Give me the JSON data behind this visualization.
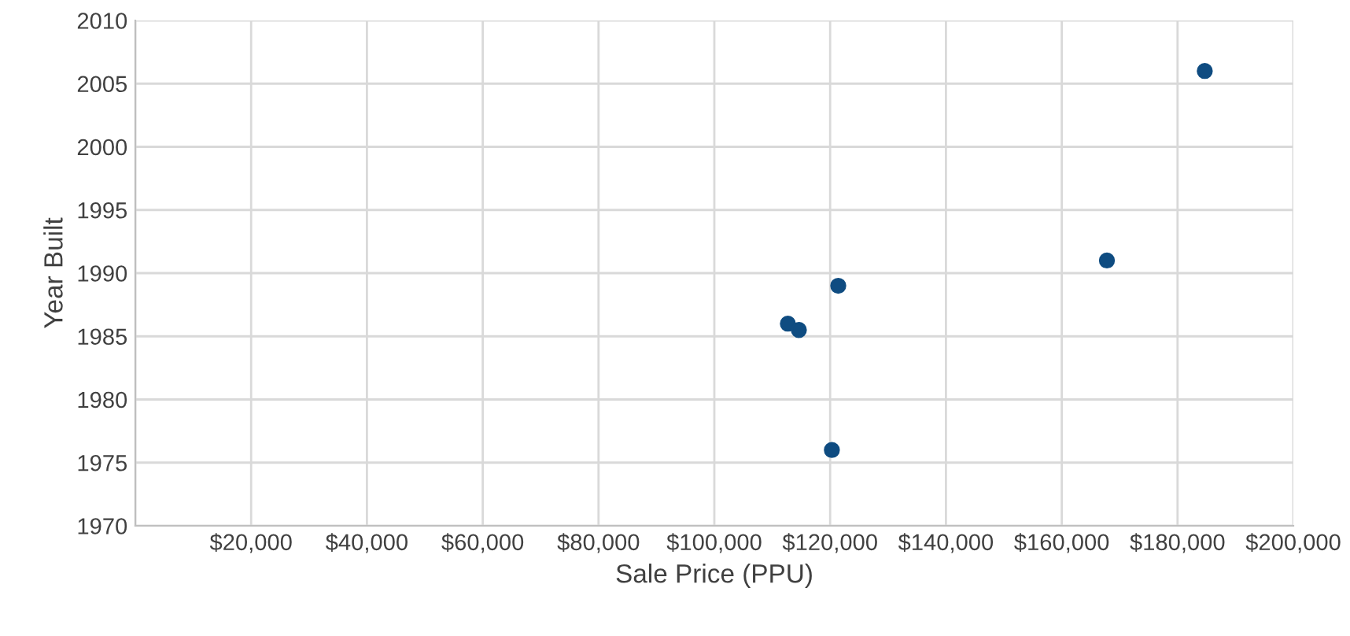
{
  "chart_data": {
    "type": "scatter",
    "xlabel": "Sale Price (PPU)",
    "ylabel": "Year Built",
    "x": [
      184700,
      167800,
      121400,
      112700,
      114600,
      120300
    ],
    "series": [
      {
        "color": "#0f4c81",
        "values": [
          2006,
          1991,
          1989,
          1986,
          1985.5,
          1976
        ]
      }
    ],
    "xlim": [
      0,
      200000
    ],
    "xticks": [
      {
        "value": 0,
        "label": null
      },
      {
        "value": 20000,
        "label": "$20,000"
      },
      {
        "value": 40000,
        "label": "$40,000"
      },
      {
        "value": 60000,
        "label": "$60,000"
      },
      {
        "value": 80000,
        "label": "$80,000"
      },
      {
        "value": 100000,
        "label": "$100,000"
      },
      {
        "value": 120000,
        "label": "$120,000"
      },
      {
        "value": 140000,
        "label": "$140,000"
      },
      {
        "value": 160000,
        "label": "$160,000"
      },
      {
        "value": 180000,
        "label": "$180,000"
      },
      {
        "value": 200000,
        "label": "$200,000"
      }
    ],
    "ylim": [
      1970,
      2010
    ],
    "yticks": [
      1970,
      1975,
      1980,
      1985,
      1990,
      1995,
      2000,
      2005,
      2010
    ],
    "grid": true,
    "marker": "circle",
    "legend": false
  }
}
